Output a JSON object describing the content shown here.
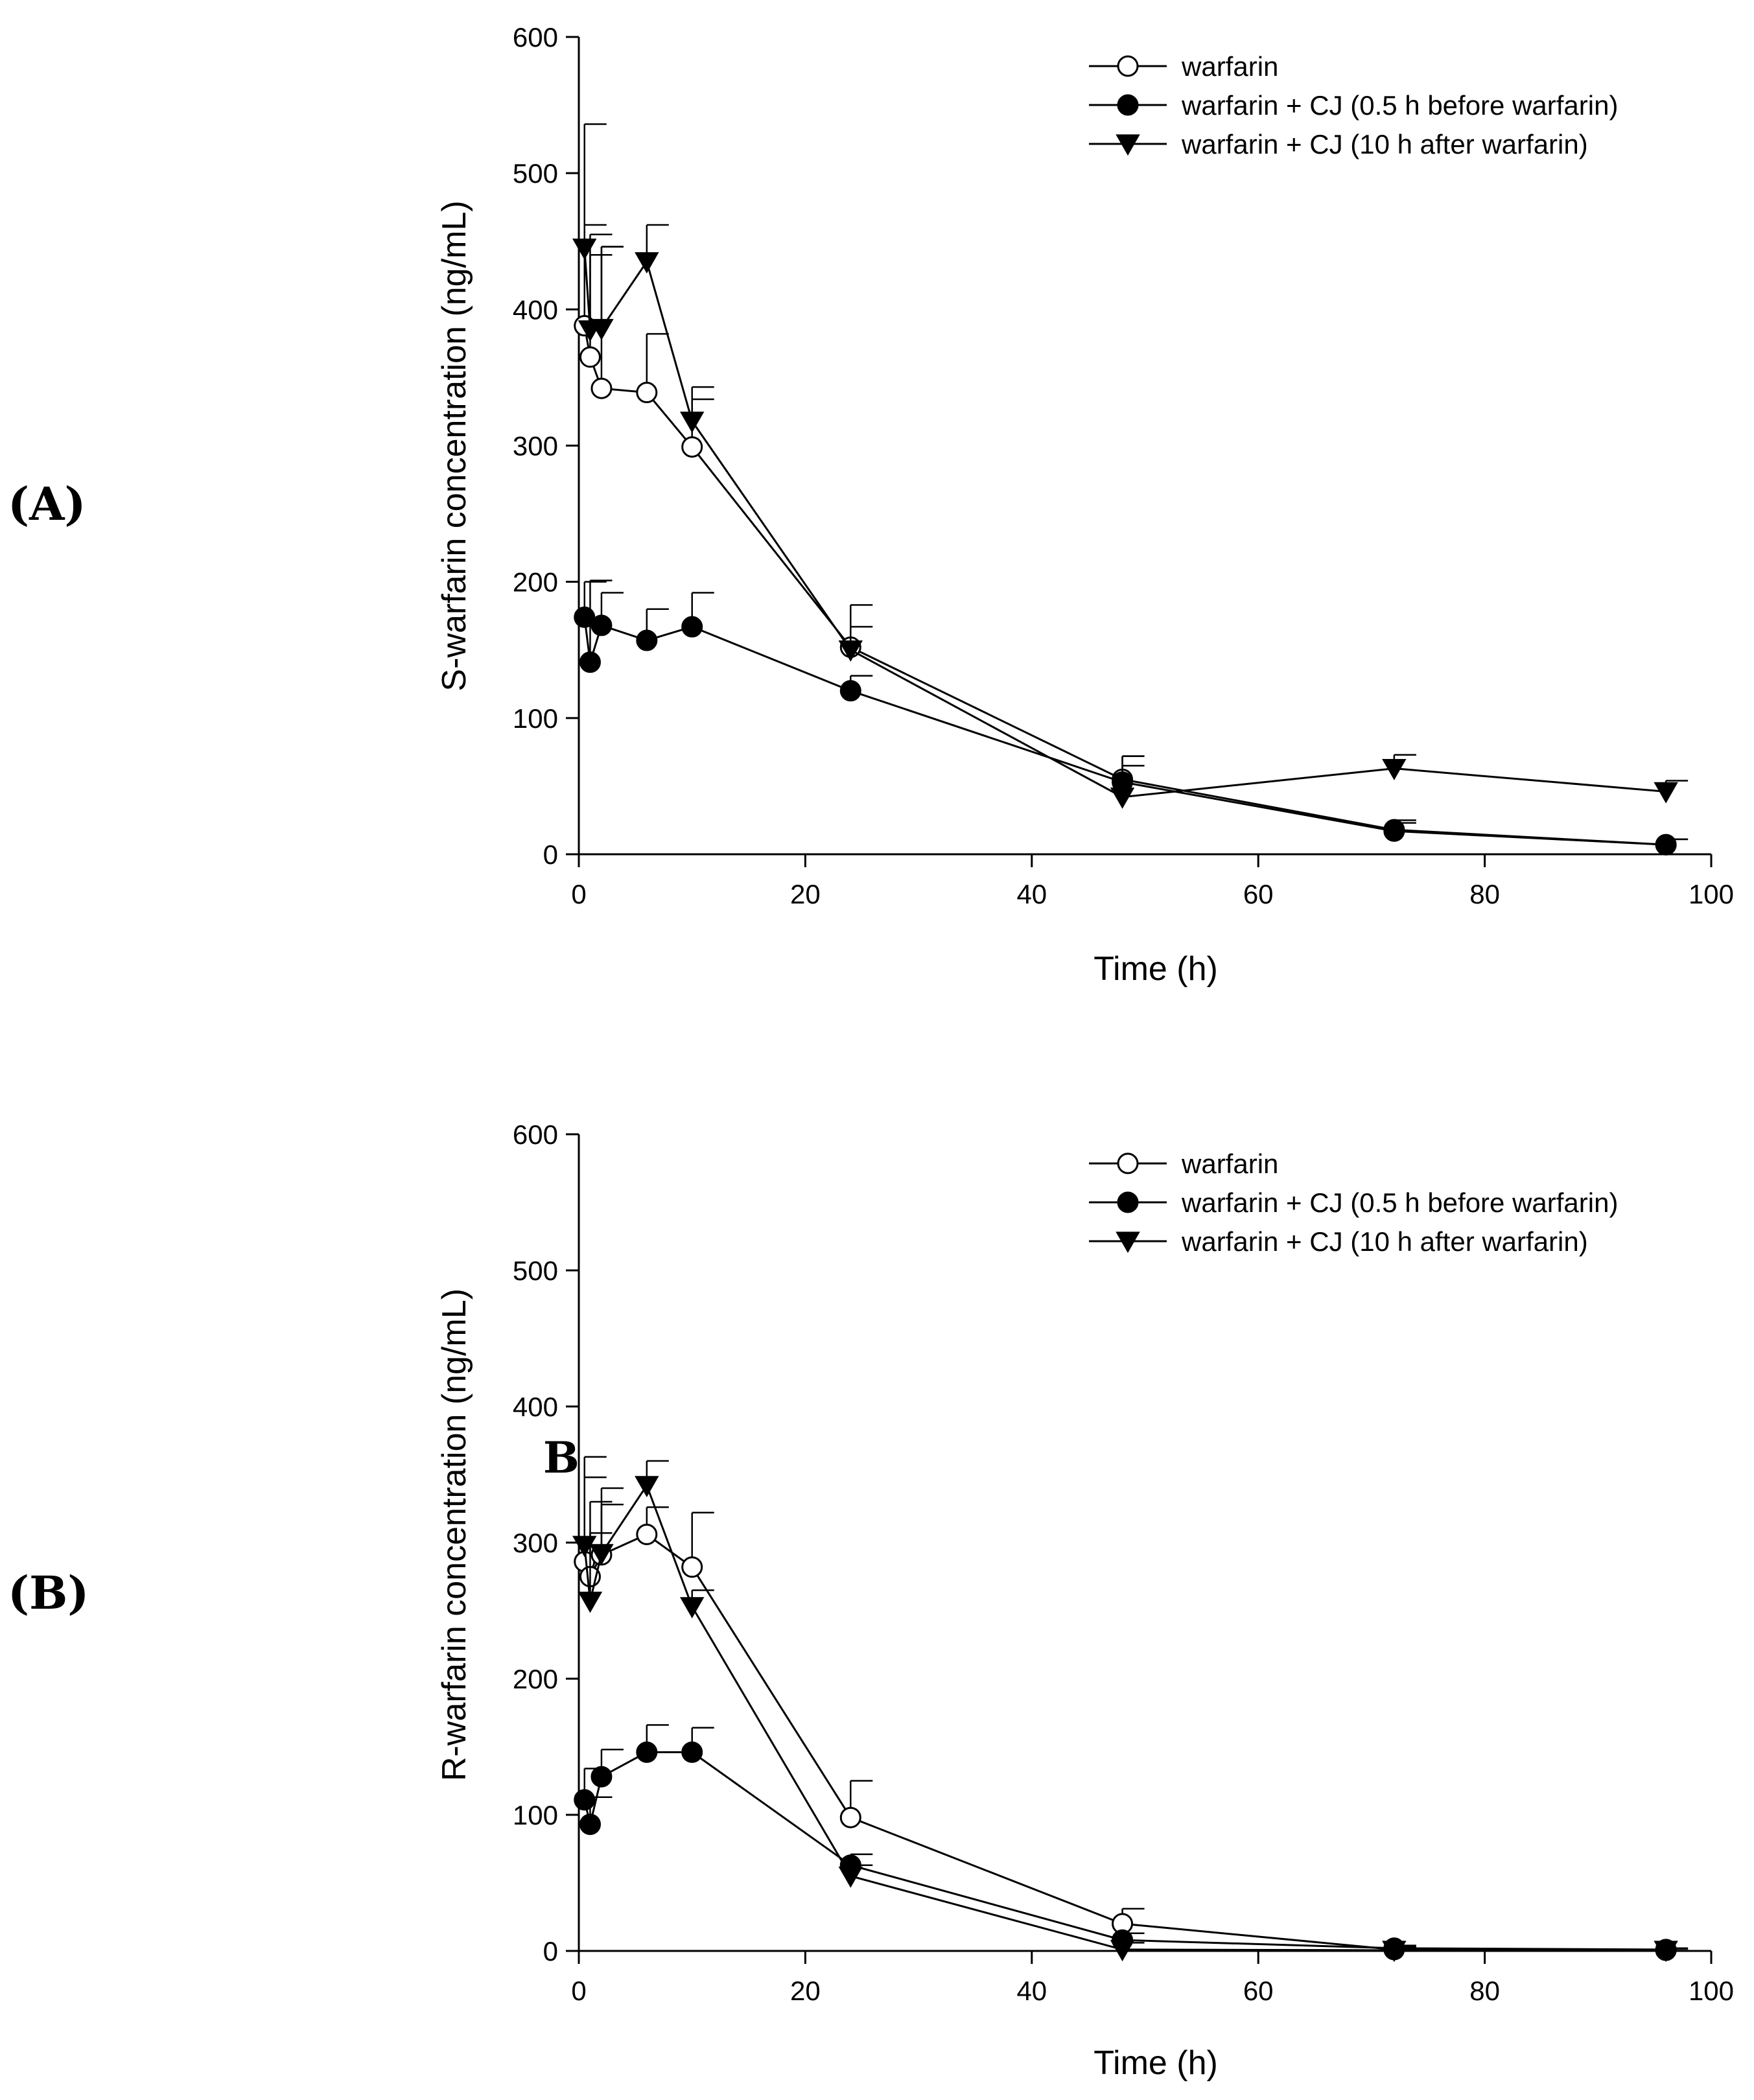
{
  "chart_data": [
    {
      "type": "line",
      "panel_label": "(A)",
      "xlabel": "Time (h)",
      "ylabel": "S-warfarin concentration (ng/mL)",
      "xlim": [
        0,
        100
      ],
      "ylim": [
        0,
        600
      ],
      "xticks": [
        0,
        20,
        40,
        60,
        80,
        100
      ],
      "yticks": [
        0,
        100,
        200,
        300,
        400,
        500,
        600
      ],
      "legend_position": "top-right",
      "x": [
        0.5,
        1,
        2,
        6,
        10,
        24,
        48,
        72,
        96
      ],
      "series": [
        {
          "name": "warfarin",
          "marker": "open-circle",
          "values": [
            388,
            365,
            342,
            339,
            299,
            152,
            55,
            18,
            7
          ],
          "errors": [
            148,
            75,
            104,
            43,
            35,
            15,
            17,
            7,
            4
          ]
        },
        {
          "name": "warfarin + CJ (0.5 h before warfarin)",
          "marker": "filled-circle",
          "values": [
            174,
            141,
            168,
            157,
            167,
            120,
            53,
            17,
            7
          ],
          "errors": [
            26,
            60,
            24,
            23,
            25,
            11,
            12,
            6,
            4
          ]
        },
        {
          "name": "warfarin + CJ (10 h after warfarin)",
          "marker": "filled-triangle-down",
          "values": [
            445,
            385,
            386,
            435,
            318,
            150,
            42,
            63,
            46
          ],
          "errors": [
            17,
            70,
            60,
            27,
            25,
            33,
            30,
            10,
            8
          ]
        }
      ]
    },
    {
      "type": "line",
      "panel_label": "(B)",
      "stray_label": "B",
      "xlabel": "Time (h)",
      "ylabel": "R-warfarin concentration (ng/mL)",
      "xlim": [
        0,
        100
      ],
      "ylim": [
        0,
        600
      ],
      "xticks": [
        0,
        20,
        40,
        60,
        80,
        100
      ],
      "yticks": [
        0,
        100,
        200,
        300,
        400,
        500,
        600
      ],
      "legend_position": "top-right",
      "x": [
        0.5,
        1,
        2,
        6,
        10,
        24,
        48,
        72,
        96
      ],
      "series": [
        {
          "name": "warfarin",
          "marker": "open-circle",
          "values": [
            286,
            275,
            291,
            306,
            282,
            98,
            20,
            1,
            0.5
          ],
          "errors": [
            77,
            55,
            37,
            20,
            40,
            27,
            11,
            2,
            1
          ]
        },
        {
          "name": "warfarin + CJ (0.5 h before warfarin)",
          "marker": "filled-circle",
          "values": [
            111,
            93,
            128,
            146,
            146,
            63,
            8,
            2,
            1
          ],
          "errors": [
            23,
            20,
            20,
            20,
            18,
            8,
            5,
            2,
            1
          ]
        },
        {
          "name": "warfarin + CJ (10 h after warfarin)",
          "marker": "filled-triangle-down",
          "values": [
            298,
            257,
            292,
            342,
            253,
            55,
            1,
            0.5,
            0.5
          ],
          "errors": [
            50,
            50,
            48,
            18,
            12,
            8,
            5,
            2,
            1
          ]
        }
      ]
    }
  ]
}
